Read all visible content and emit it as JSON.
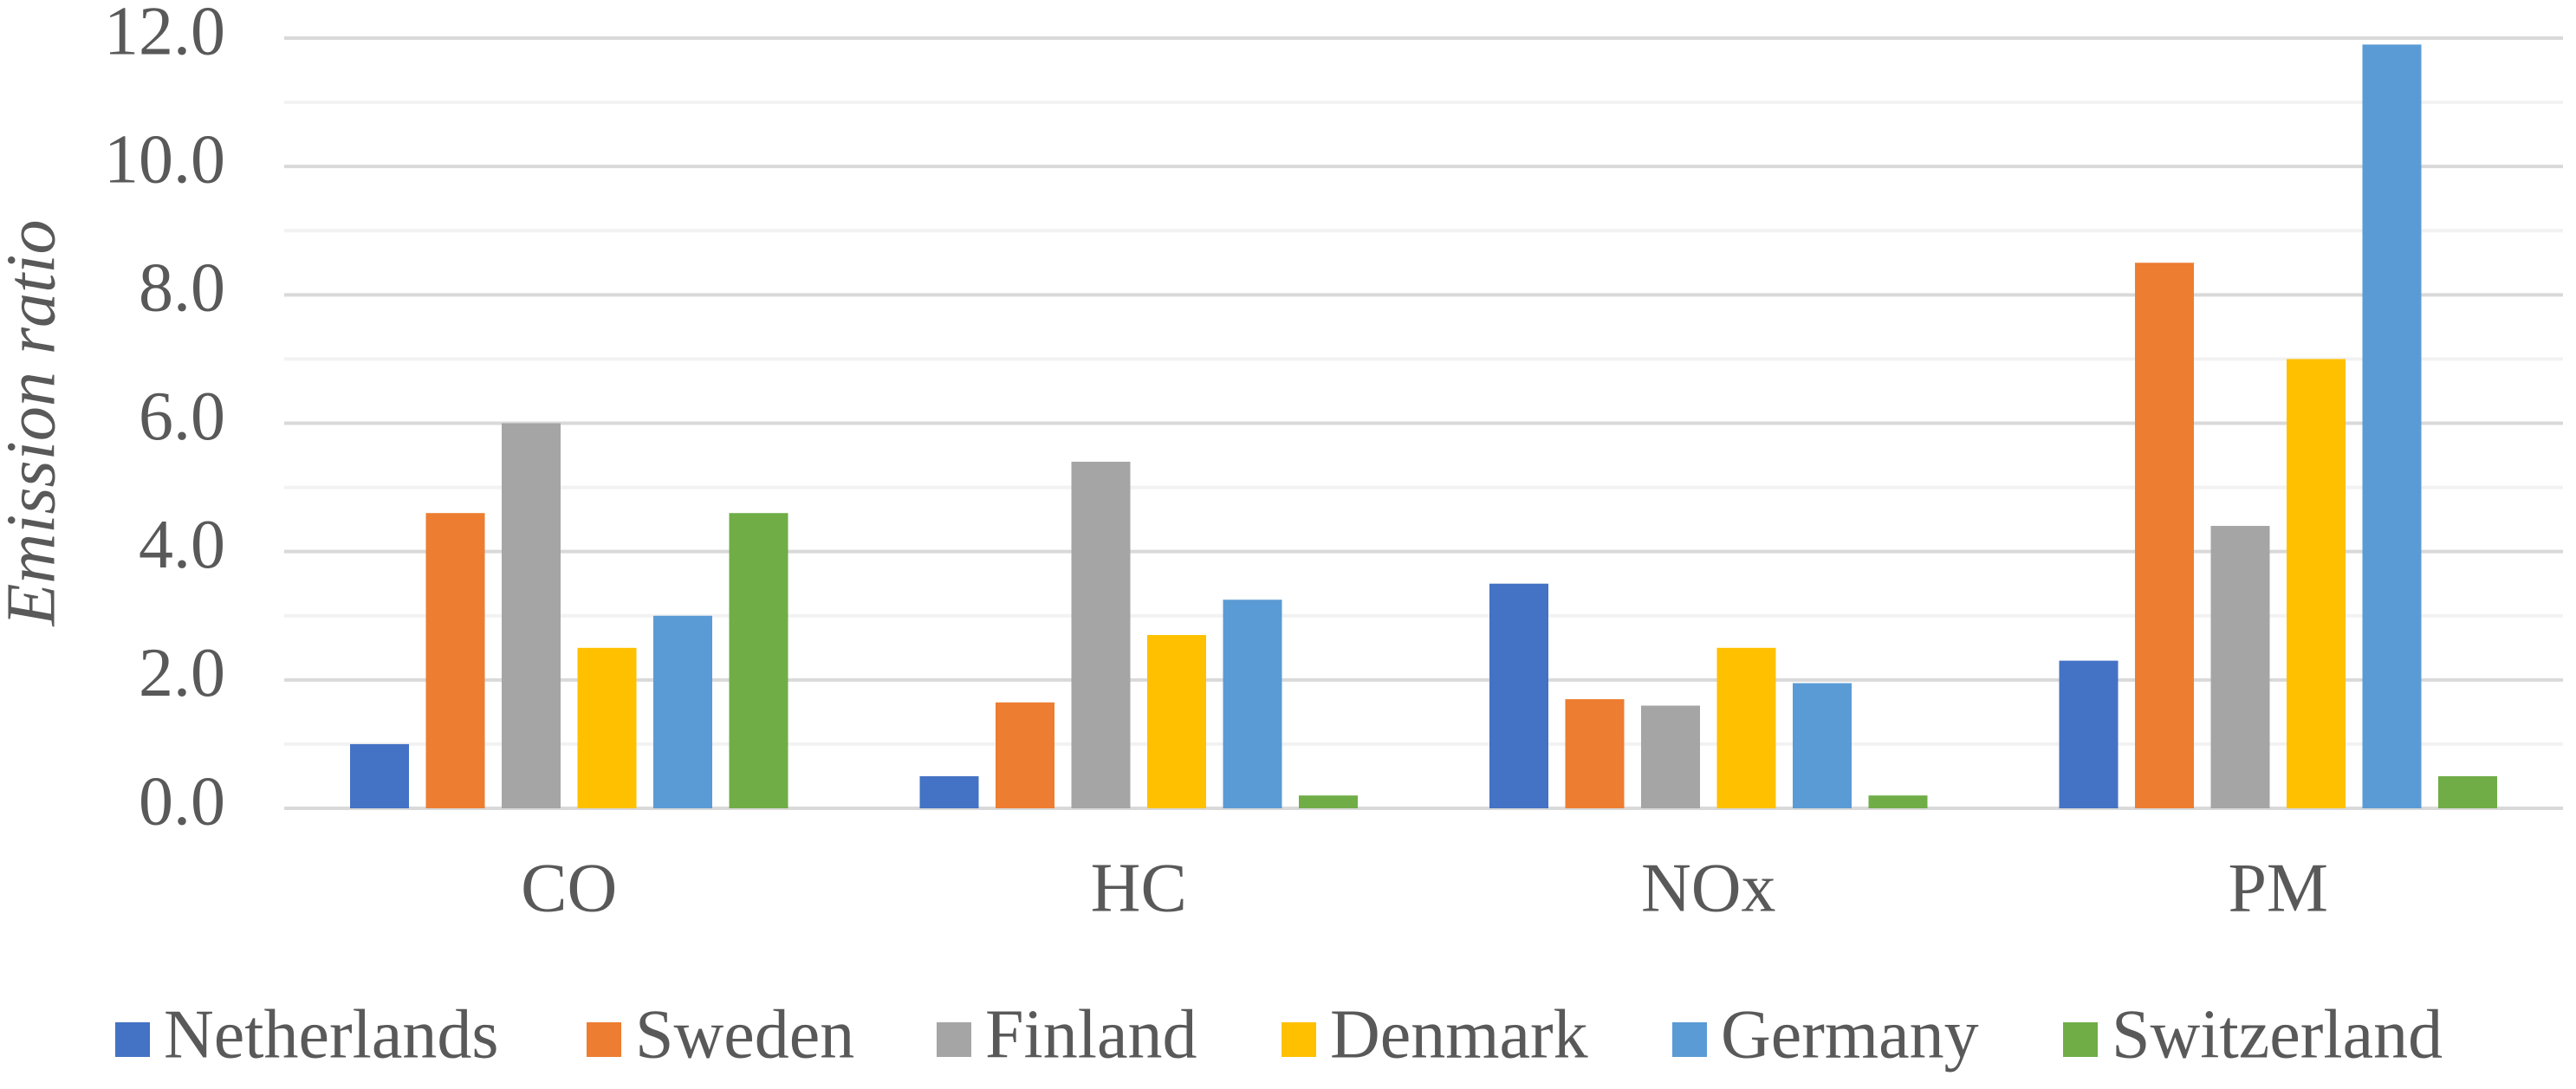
{
  "chart_data": {
    "type": "bar",
    "y_label": "Emission ratio",
    "categories": [
      "CO",
      "HC",
      "NOx",
      "PM"
    ],
    "series": [
      {
        "name": "Netherlands",
        "color": "#4472c4",
        "values": [
          1.0,
          0.5,
          3.5,
          2.3
        ]
      },
      {
        "name": "Sweden",
        "color": "#ed7d31",
        "values": [
          4.6,
          1.65,
          1.7,
          8.5
        ]
      },
      {
        "name": "Finland",
        "color": "#a5a5a5",
        "values": [
          6.0,
          5.4,
          1.6,
          4.4
        ]
      },
      {
        "name": "Denmark",
        "color": "#ffc000",
        "values": [
          2.5,
          2.7,
          2.5,
          7.0
        ]
      },
      {
        "name": "Germany",
        "color": "#5b9bd5",
        "values": [
          3.0,
          3.25,
          1.95,
          11.9
        ]
      },
      {
        "name": "Switzerland",
        "color": "#70ad47",
        "values": [
          4.6,
          0.2,
          0.2,
          0.5
        ]
      }
    ],
    "ylim": [
      0,
      12
    ],
    "yticks": [
      {
        "value": 0,
        "label": "0.0"
      },
      {
        "value": 2,
        "label": "2.0"
      },
      {
        "value": 4,
        "label": "4.0"
      },
      {
        "value": 6,
        "label": "6.0"
      },
      {
        "value": 8,
        "label": "8.0"
      },
      {
        "value": 10,
        "label": "10.0"
      },
      {
        "value": 12,
        "label": "12.0"
      }
    ],
    "minor_yticks": [
      1,
      3,
      5,
      7,
      9,
      11
    ],
    "grid": true,
    "legend": "bottom"
  }
}
